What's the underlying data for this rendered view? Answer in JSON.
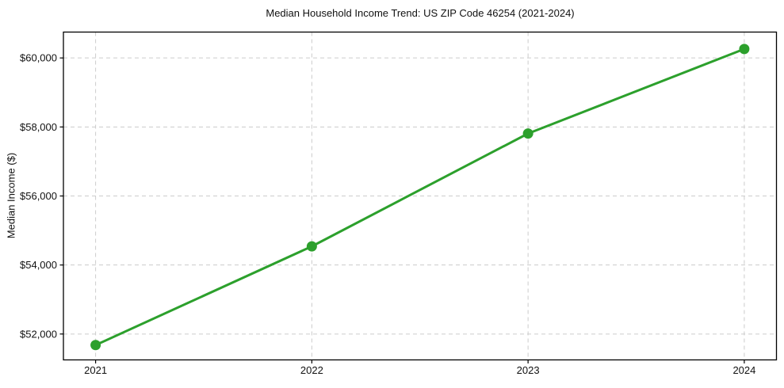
{
  "title": "Median Household Income Trend: US ZIP Code 46254 (2021-2024)",
  "chart_data": {
    "type": "line",
    "title": "Median Household Income Trend: US ZIP Code 46254 (2021-2024)",
    "xlabel": "",
    "ylabel": "Median Income ($)",
    "x": [
      2021,
      2022,
      2023,
      2024
    ],
    "xtick_labels": [
      "2021",
      "2022",
      "2023",
      "2024"
    ],
    "series": [
      {
        "name": "Median Household Income",
        "values": [
          51680,
          54540,
          57810,
          60260
        ]
      }
    ],
    "ylim": [
      51250,
      60750
    ],
    "yticks": [
      52000,
      54000,
      56000,
      58000,
      60000
    ],
    "ytick_labels": [
      "$52,000",
      "$54,000",
      "$56,000",
      "$58,000",
      "$60,000"
    ],
    "grid": true,
    "legend_position": "none",
    "line_color": "#2ca02c",
    "marker_color": "#2ca02c",
    "grid_color": "#cccccc",
    "axis_color": "#000000",
    "tick_label_color": "#111111",
    "background_color": "#ffffff"
  }
}
